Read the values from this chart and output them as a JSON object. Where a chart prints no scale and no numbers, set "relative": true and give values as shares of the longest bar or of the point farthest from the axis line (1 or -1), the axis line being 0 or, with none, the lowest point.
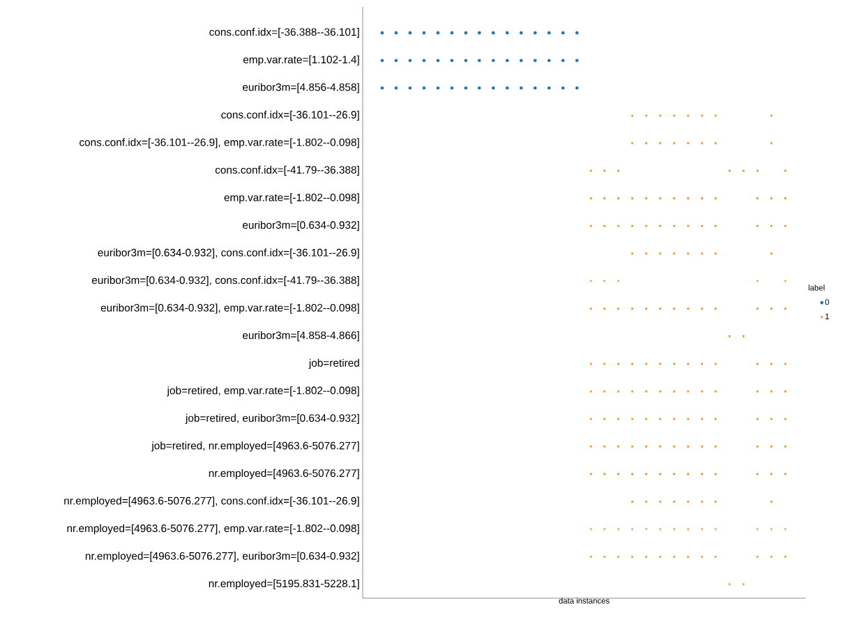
{
  "chart_data": {
    "type": "scatter",
    "orientation": "horizontal",
    "relative": true,
    "xlabel": "data instances",
    "legend_title": "label",
    "legend": "right",
    "categories": [
      "cons.conf.idx=[-36.388--36.101]",
      "emp.var.rate=[1.102-1.4]",
      "euribor3m=[4.856-4.858]",
      "cons.conf.idx=[-36.101--26.9]",
      "cons.conf.idx=[-36.101--26.9], emp.var.rate=[-1.802--0.098]",
      "cons.conf.idx=[-41.79--36.388]",
      "emp.var.rate=[-1.802--0.098]",
      "euribor3m=[0.634-0.932]",
      "euribor3m=[0.634-0.932], cons.conf.idx=[-36.101--26.9]",
      "euribor3m=[0.634-0.932], cons.conf.idx=[-41.79--36.388]",
      "euribor3m=[0.634-0.932], emp.var.rate=[-1.802--0.098]",
      "euribor3m=[4.858-4.866]",
      "job=retired",
      "job=retired, emp.var.rate=[-1.802--0.098]",
      "job=retired, euribor3m=[0.634-0.932]",
      "job=retired, nr.employed=[4963.6-5076.277]",
      "nr.employed=[4963.6-5076.277]",
      "nr.employed=[4963.6-5076.277], cons.conf.idx=[-36.101--26.9]",
      "nr.employed=[4963.6-5076.277], emp.var.rate=[-1.802--0.098]",
      "nr.employed=[4963.6-5076.277], euribor3m=[0.634-0.932]",
      "nr.employed=[5195.831-5228.1]"
    ],
    "series": [
      {
        "name": "0",
        "color": "#1f77b4",
        "marker": "circle",
        "x": [
          "cons.conf.idx=[-36.388--36.101]",
          "cons.conf.idx=[-36.388--36.101]",
          "cons.conf.idx=[-36.388--36.101]",
          "cons.conf.idx=[-36.388--36.101]",
          "cons.conf.idx=[-36.388--36.101]",
          "cons.conf.idx=[-36.388--36.101]",
          "cons.conf.idx=[-36.388--36.101]",
          "cons.conf.idx=[-36.388--36.101]",
          "cons.conf.idx=[-36.388--36.101]",
          "cons.conf.idx=[-36.388--36.101]",
          "cons.conf.idx=[-36.388--36.101]",
          "cons.conf.idx=[-36.388--36.101]",
          "cons.conf.idx=[-36.388--36.101]",
          "cons.conf.idx=[-36.388--36.101]",
          "cons.conf.idx=[-36.388--36.101]",
          "emp.var.rate=[1.102-1.4]",
          "emp.var.rate=[1.102-1.4]",
          "emp.var.rate=[1.102-1.4]",
          "emp.var.rate=[1.102-1.4]",
          "emp.var.rate=[1.102-1.4]",
          "emp.var.rate=[1.102-1.4]",
          "emp.var.rate=[1.102-1.4]",
          "emp.var.rate=[1.102-1.4]",
          "emp.var.rate=[1.102-1.4]",
          "emp.var.rate=[1.102-1.4]",
          "emp.var.rate=[1.102-1.4]",
          "emp.var.rate=[1.102-1.4]",
          "emp.var.rate=[1.102-1.4]",
          "emp.var.rate=[1.102-1.4]",
          "emp.var.rate=[1.102-1.4]",
          "euribor3m=[4.856-4.858]",
          "euribor3m=[4.856-4.858]",
          "euribor3m=[4.856-4.858]",
          "euribor3m=[4.856-4.858]",
          "euribor3m=[4.856-4.858]",
          "euribor3m=[4.856-4.858]",
          "euribor3m=[4.856-4.858]",
          "euribor3m=[4.856-4.858]",
          "euribor3m=[4.856-4.858]",
          "euribor3m=[4.856-4.858]",
          "euribor3m=[4.856-4.858]",
          "euribor3m=[4.856-4.858]",
          "euribor3m=[4.856-4.858]",
          "euribor3m=[4.856-4.858]",
          "euribor3m=[4.856-4.858]"
        ],
        "values": [
          0.046,
          0.079,
          0.112,
          0.145,
          0.178,
          0.211,
          0.244,
          0.276,
          0.309,
          0.342,
          0.375,
          0.408,
          0.441,
          0.474,
          0.507,
          0.046,
          0.079,
          0.112,
          0.145,
          0.178,
          0.211,
          0.244,
          0.276,
          0.309,
          0.342,
          0.375,
          0.408,
          0.441,
          0.474,
          0.507,
          0.046,
          0.079,
          0.112,
          0.145,
          0.178,
          0.211,
          0.244,
          0.276,
          0.309,
          0.342,
          0.375,
          0.408,
          0.441,
          0.474,
          0.507
        ]
      },
      {
        "name": "1",
        "color": "#ff7f0e",
        "marker": "cross",
        "x": [
          "cons.conf.idx=[-36.101--26.9]",
          "cons.conf.idx=[-36.101--26.9]",
          "cons.conf.idx=[-36.101--26.9]",
          "cons.conf.idx=[-36.101--26.9]",
          "cons.conf.idx=[-36.101--26.9]",
          "cons.conf.idx=[-36.101--26.9]",
          "cons.conf.idx=[-36.101--26.9]",
          "cons.conf.idx=[-36.101--26.9]",
          "cons.conf.idx=[-36.101--26.9], emp.var.rate=[-1.802--0.098]",
          "cons.conf.idx=[-36.101--26.9], emp.var.rate=[-1.802--0.098]",
          "cons.conf.idx=[-36.101--26.9], emp.var.rate=[-1.802--0.098]",
          "cons.conf.idx=[-36.101--26.9], emp.var.rate=[-1.802--0.098]",
          "cons.conf.idx=[-36.101--26.9], emp.var.rate=[-1.802--0.098]",
          "cons.conf.idx=[-36.101--26.9], emp.var.rate=[-1.802--0.098]",
          "cons.conf.idx=[-36.101--26.9], emp.var.rate=[-1.802--0.098]",
          "cons.conf.idx=[-36.101--26.9], emp.var.rate=[-1.802--0.098]",
          "cons.conf.idx=[-41.79--36.388]",
          "cons.conf.idx=[-41.79--36.388]",
          "cons.conf.idx=[-41.79--36.388]",
          "cons.conf.idx=[-41.79--36.388]",
          "cons.conf.idx=[-41.79--36.388]",
          "cons.conf.idx=[-41.79--36.388]",
          "cons.conf.idx=[-41.79--36.388]",
          "emp.var.rate=[-1.802--0.098]",
          "emp.var.rate=[-1.802--0.098]",
          "emp.var.rate=[-1.802--0.098]",
          "emp.var.rate=[-1.802--0.098]",
          "emp.var.rate=[-1.802--0.098]",
          "emp.var.rate=[-1.802--0.098]",
          "emp.var.rate=[-1.802--0.098]",
          "emp.var.rate=[-1.802--0.098]",
          "emp.var.rate=[-1.802--0.098]",
          "emp.var.rate=[-1.802--0.098]",
          "emp.var.rate=[-1.802--0.098]",
          "emp.var.rate=[-1.802--0.098]",
          "emp.var.rate=[-1.802--0.098]",
          "euribor3m=[0.634-0.932]",
          "euribor3m=[0.634-0.932]",
          "euribor3m=[0.634-0.932]",
          "euribor3m=[0.634-0.932]",
          "euribor3m=[0.634-0.932]",
          "euribor3m=[0.634-0.932]",
          "euribor3m=[0.634-0.932]",
          "euribor3m=[0.634-0.932]",
          "euribor3m=[0.634-0.932]",
          "euribor3m=[0.634-0.932]",
          "euribor3m=[0.634-0.932]",
          "euribor3m=[0.634-0.932]",
          "euribor3m=[0.634-0.932]",
          "euribor3m=[0.634-0.932], cons.conf.idx=[-36.101--26.9]",
          "euribor3m=[0.634-0.932], cons.conf.idx=[-36.101--26.9]",
          "euribor3m=[0.634-0.932], cons.conf.idx=[-36.101--26.9]",
          "euribor3m=[0.634-0.932], cons.conf.idx=[-36.101--26.9]",
          "euribor3m=[0.634-0.932], cons.conf.idx=[-36.101--26.9]",
          "euribor3m=[0.634-0.932], cons.conf.idx=[-36.101--26.9]",
          "euribor3m=[0.634-0.932], cons.conf.idx=[-36.101--26.9]",
          "euribor3m=[0.634-0.932], cons.conf.idx=[-36.101--26.9]",
          "euribor3m=[0.634-0.932], cons.conf.idx=[-41.79--36.388]",
          "euribor3m=[0.634-0.932], cons.conf.idx=[-41.79--36.388]",
          "euribor3m=[0.634-0.932], cons.conf.idx=[-41.79--36.388]",
          "euribor3m=[0.634-0.932], cons.conf.idx=[-41.79--36.388]",
          "euribor3m=[0.634-0.932], cons.conf.idx=[-41.79--36.388]",
          "euribor3m=[0.634-0.932], emp.var.rate=[-1.802--0.098]",
          "euribor3m=[0.634-0.932], emp.var.rate=[-1.802--0.098]",
          "euribor3m=[0.634-0.932], emp.var.rate=[-1.802--0.098]",
          "euribor3m=[0.634-0.932], emp.var.rate=[-1.802--0.098]",
          "euribor3m=[0.634-0.932], emp.var.rate=[-1.802--0.098]",
          "euribor3m=[0.634-0.932], emp.var.rate=[-1.802--0.098]",
          "euribor3m=[0.634-0.932], emp.var.rate=[-1.802--0.098]",
          "euribor3m=[0.634-0.932], emp.var.rate=[-1.802--0.098]",
          "euribor3m=[0.634-0.932], emp.var.rate=[-1.802--0.098]",
          "euribor3m=[0.634-0.932], emp.var.rate=[-1.802--0.098]",
          "euribor3m=[0.634-0.932], emp.var.rate=[-1.802--0.098]",
          "euribor3m=[0.634-0.932], emp.var.rate=[-1.802--0.098]",
          "euribor3m=[0.634-0.932], emp.var.rate=[-1.802--0.098]",
          "euribor3m=[4.858-4.866]",
          "euribor3m=[4.858-4.866]",
          "job=retired",
          "job=retired",
          "job=retired",
          "job=retired",
          "job=retired",
          "job=retired",
          "job=retired",
          "job=retired",
          "job=retired",
          "job=retired",
          "job=retired",
          "job=retired",
          "job=retired",
          "job=retired, emp.var.rate=[-1.802--0.098]",
          "job=retired, emp.var.rate=[-1.802--0.098]",
          "job=retired, emp.var.rate=[-1.802--0.098]",
          "job=retired, emp.var.rate=[-1.802--0.098]",
          "job=retired, emp.var.rate=[-1.802--0.098]",
          "job=retired, emp.var.rate=[-1.802--0.098]",
          "job=retired, emp.var.rate=[-1.802--0.098]",
          "job=retired, emp.var.rate=[-1.802--0.098]",
          "job=retired, emp.var.rate=[-1.802--0.098]",
          "job=retired, emp.var.rate=[-1.802--0.098]",
          "job=retired, emp.var.rate=[-1.802--0.098]",
          "job=retired, emp.var.rate=[-1.802--0.098]",
          "job=retired, emp.var.rate=[-1.802--0.098]",
          "job=retired, euribor3m=[0.634-0.932]",
          "job=retired, euribor3m=[0.634-0.932]",
          "job=retired, euribor3m=[0.634-0.932]",
          "job=retired, euribor3m=[0.634-0.932]",
          "job=retired, euribor3m=[0.634-0.932]",
          "job=retired, euribor3m=[0.634-0.932]",
          "job=retired, euribor3m=[0.634-0.932]",
          "job=retired, euribor3m=[0.634-0.932]",
          "job=retired, euribor3m=[0.634-0.932]",
          "job=retired, euribor3m=[0.634-0.932]",
          "job=retired, euribor3m=[0.634-0.932]",
          "job=retired, euribor3m=[0.634-0.932]",
          "job=retired, euribor3m=[0.634-0.932]",
          "job=retired, nr.employed=[4963.6-5076.277]",
          "job=retired, nr.employed=[4963.6-5076.277]",
          "job=retired, nr.employed=[4963.6-5076.277]",
          "job=retired, nr.employed=[4963.6-5076.277]",
          "job=retired, nr.employed=[4963.6-5076.277]",
          "job=retired, nr.employed=[4963.6-5076.277]",
          "job=retired, nr.employed=[4963.6-5076.277]",
          "job=retired, nr.employed=[4963.6-5076.277]",
          "job=retired, nr.employed=[4963.6-5076.277]",
          "job=retired, nr.employed=[4963.6-5076.277]",
          "job=retired, nr.employed=[4963.6-5076.277]",
          "job=retired, nr.employed=[4963.6-5076.277]",
          "job=retired, nr.employed=[4963.6-5076.277]",
          "nr.employed=[4963.6-5076.277]",
          "nr.employed=[4963.6-5076.277]",
          "nr.employed=[4963.6-5076.277]",
          "nr.employed=[4963.6-5076.277]",
          "nr.employed=[4963.6-5076.277]",
          "nr.employed=[4963.6-5076.277]",
          "nr.employed=[4963.6-5076.277]",
          "nr.employed=[4963.6-5076.277]",
          "nr.employed=[4963.6-5076.277]",
          "nr.employed=[4963.6-5076.277]",
          "nr.employed=[4963.6-5076.277]",
          "nr.employed=[4963.6-5076.277]",
          "nr.employed=[4963.6-5076.277]",
          "nr.employed=[4963.6-5076.277], cons.conf.idx=[-36.101--26.9]",
          "nr.employed=[4963.6-5076.277], cons.conf.idx=[-36.101--26.9]",
          "nr.employed=[4963.6-5076.277], cons.conf.idx=[-36.101--26.9]",
          "nr.employed=[4963.6-5076.277], cons.conf.idx=[-36.101--26.9]",
          "nr.employed=[4963.6-5076.277], cons.conf.idx=[-36.101--26.9]",
          "nr.employed=[4963.6-5076.277], cons.conf.idx=[-36.101--26.9]",
          "nr.employed=[4963.6-5076.277], cons.conf.idx=[-36.101--26.9]",
          "nr.employed=[4963.6-5076.277], cons.conf.idx=[-36.101--26.9]",
          "nr.employed=[4963.6-5076.277], emp.var.rate=[-1.802--0.098]",
          "nr.employed=[4963.6-5076.277], emp.var.rate=[-1.802--0.098]",
          "nr.employed=[4963.6-5076.277], emp.var.rate=[-1.802--0.098]",
          "nr.employed=[4963.6-5076.277], emp.var.rate=[-1.802--0.098]",
          "nr.employed=[4963.6-5076.277], emp.var.rate=[-1.802--0.098]",
          "nr.employed=[4963.6-5076.277], emp.var.rate=[-1.802--0.098]",
          "nr.employed=[4963.6-5076.277], emp.var.rate=[-1.802--0.098]",
          "nr.employed=[4963.6-5076.277], emp.var.rate=[-1.802--0.098]",
          "nr.employed=[4963.6-5076.277], emp.var.rate=[-1.802--0.098]",
          "nr.employed=[4963.6-5076.277], emp.var.rate=[-1.802--0.098]",
          "nr.employed=[4963.6-5076.277], emp.var.rate=[-1.802--0.098]",
          "nr.employed=[4963.6-5076.277], emp.var.rate=[-1.802--0.098]",
          "nr.employed=[4963.6-5076.277], emp.var.rate=[-1.802--0.098]",
          "nr.employed=[4963.6-5076.277], euribor3m=[0.634-0.932]",
          "nr.employed=[4963.6-5076.277], euribor3m=[0.634-0.932]",
          "nr.employed=[4963.6-5076.277], euribor3m=[0.634-0.932]",
          "nr.employed=[4963.6-5076.277], euribor3m=[0.634-0.932]",
          "nr.employed=[4963.6-5076.277], euribor3m=[0.634-0.932]",
          "nr.employed=[4963.6-5076.277], euribor3m=[0.634-0.932]",
          "nr.employed=[4963.6-5076.277], euribor3m=[0.634-0.932]",
          "nr.employed=[4963.6-5076.277], euribor3m=[0.634-0.932]",
          "nr.employed=[4963.6-5076.277], euribor3m=[0.634-0.932]",
          "nr.employed=[4963.6-5076.277], euribor3m=[0.634-0.932]",
          "nr.employed=[4963.6-5076.277], euribor3m=[0.634-0.932]",
          "nr.employed=[4963.6-5076.277], euribor3m=[0.634-0.932]",
          "nr.employed=[4963.6-5076.277], euribor3m=[0.634-0.932]",
          "nr.employed=[5195.831-5228.1]",
          "nr.employed=[5195.831-5228.1]"
        ],
        "values": [
          0.638,
          0.671,
          0.704,
          0.737,
          0.77,
          0.803,
          0.835,
          0.967,
          0.638,
          0.671,
          0.704,
          0.737,
          0.77,
          0.803,
          0.835,
          0.967,
          0.54,
          0.572,
          0.605,
          0.868,
          0.901,
          0.934,
          1,
          0.54,
          0.572,
          0.605,
          0.638,
          0.671,
          0.704,
          0.737,
          0.77,
          0.803,
          0.835,
          0.934,
          0.967,
          1,
          0.54,
          0.572,
          0.605,
          0.638,
          0.671,
          0.704,
          0.737,
          0.77,
          0.803,
          0.835,
          0.934,
          0.967,
          1,
          0.638,
          0.671,
          0.704,
          0.737,
          0.77,
          0.803,
          0.835,
          0.967,
          0.54,
          0.572,
          0.605,
          0.934,
          1,
          0.54,
          0.572,
          0.605,
          0.638,
          0.671,
          0.704,
          0.737,
          0.77,
          0.803,
          0.835,
          0.934,
          0.967,
          1,
          0.868,
          0.901,
          0.54,
          0.572,
          0.605,
          0.638,
          0.671,
          0.704,
          0.737,
          0.77,
          0.803,
          0.835,
          0.934,
          0.967,
          1,
          0.54,
          0.572,
          0.605,
          0.638,
          0.671,
          0.704,
          0.737,
          0.77,
          0.803,
          0.835,
          0.934,
          0.967,
          1,
          0.54,
          0.572,
          0.605,
          0.638,
          0.671,
          0.704,
          0.737,
          0.77,
          0.803,
          0.835,
          0.934,
          0.967,
          1,
          0.54,
          0.572,
          0.605,
          0.638,
          0.671,
          0.704,
          0.737,
          0.77,
          0.803,
          0.835,
          0.934,
          0.967,
          1,
          0.54,
          0.572,
          0.605,
          0.638,
          0.671,
          0.704,
          0.737,
          0.77,
          0.803,
          0.835,
          0.934,
          0.967,
          1,
          0.638,
          0.671,
          0.704,
          0.737,
          0.77,
          0.803,
          0.835,
          0.967,
          0.54,
          0.572,
          0.605,
          0.638,
          0.671,
          0.704,
          0.737,
          0.77,
          0.803,
          0.835,
          0.934,
          0.967,
          1,
          0.54,
          0.572,
          0.605,
          0.638,
          0.671,
          0.704,
          0.737,
          0.77,
          0.803,
          0.835,
          0.934,
          0.967,
          1,
          0.868,
          0.901
        ]
      }
    ]
  }
}
